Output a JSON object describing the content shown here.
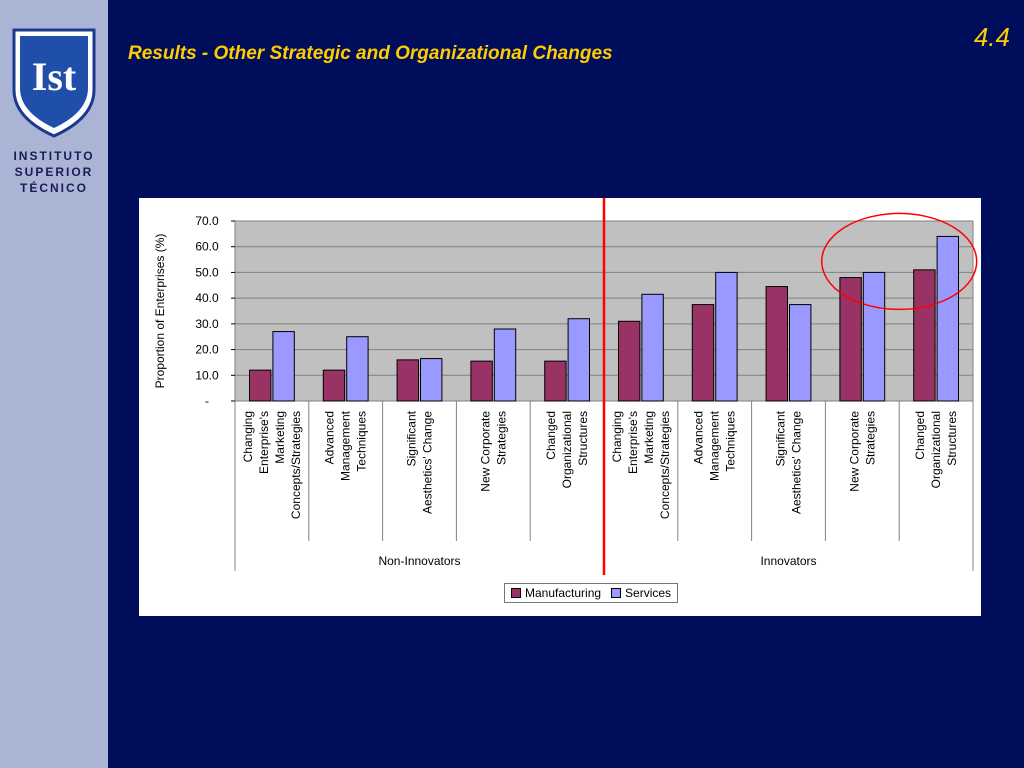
{
  "institution": {
    "logo_text": "Ist",
    "lines": [
      "INSTITUTO",
      "SUPERIOR",
      "TÉCNICO"
    ]
  },
  "slide": {
    "title": "Results - Other Strategic and Organizational Changes",
    "number": "4.4"
  },
  "colors": {
    "background": "#000d5a",
    "sidebar": "#aab5d6",
    "title": "#ffcc00",
    "manufacturing": "#993366",
    "services": "#9999ff",
    "divider": "#ff0000",
    "plot_bg": "#c0c0c0"
  },
  "chart_data": {
    "type": "bar",
    "title": "",
    "ylabel": "Proportion of Enterprises (%)",
    "xlabel": "",
    "ylim": [
      0,
      70
    ],
    "yticks": [
      "-",
      "10.0",
      "20.0",
      "30.0",
      "40.0",
      "50.0",
      "60.0",
      "70.0"
    ],
    "grid": true,
    "legend_position": "bottom-center",
    "groups": [
      {
        "name": "Non-Innovators",
        "categories": [
          0,
          1,
          2,
          3,
          4
        ]
      },
      {
        "name": "Innovators",
        "categories": [
          5,
          6,
          7,
          8,
          9
        ]
      }
    ],
    "categories": [
      [
        "Changing",
        "Enterprise's",
        "Marketing",
        "Concepts/Strategies"
      ],
      [
        "Advanced",
        "Management",
        "Techniques"
      ],
      [
        "Significant",
        "Aesthetics' Change"
      ],
      [
        "New Corporate",
        "Strategies"
      ],
      [
        "Changed",
        "Organizational",
        "Structures"
      ],
      [
        "Changing",
        "Enterprise's",
        "Marketing",
        "Concepts/Strategies"
      ],
      [
        "Advanced",
        "Management",
        "Techniques"
      ],
      [
        "Significant",
        "Aesthetics' Change"
      ],
      [
        "New Corporate",
        "Strategies"
      ],
      [
        "Changed",
        "Organizational",
        "Structures"
      ]
    ],
    "series": [
      {
        "name": "Manufacturing",
        "values": [
          12,
          12,
          16,
          15.5,
          15.5,
          31,
          37.5,
          44.5,
          48,
          51
        ]
      },
      {
        "name": "Services",
        "values": [
          27,
          25,
          16.5,
          28,
          32,
          41.5,
          50,
          37.5,
          50,
          64
        ]
      }
    ],
    "annotations": [
      {
        "type": "divider-line",
        "between_categories": [
          4,
          5
        ]
      },
      {
        "type": "ellipse-highlight",
        "categories": [
          8,
          9
        ]
      }
    ]
  }
}
